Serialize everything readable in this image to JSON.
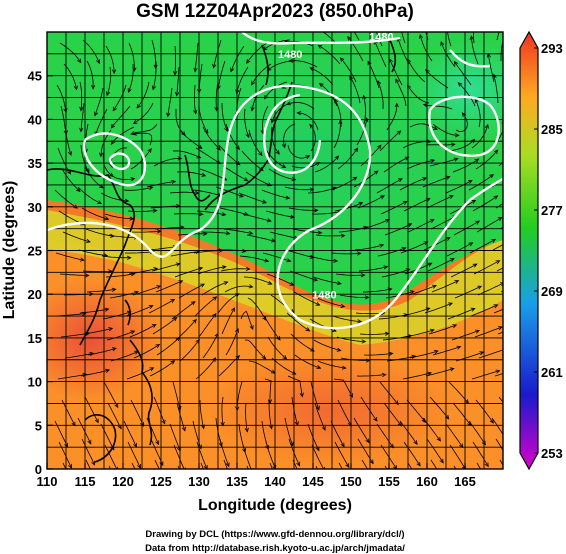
{
  "title": "GSM 12Z04Apr2023 (850.0hPa)",
  "x_axis": {
    "label": "Longitude (degrees)",
    "range": [
      110,
      170
    ],
    "ticks": [
      "110",
      "115",
      "120",
      "125",
      "130",
      "135",
      "140",
      "145",
      "150",
      "155",
      "160",
      "165"
    ],
    "tick_values": [
      110,
      115,
      120,
      125,
      130,
      135,
      140,
      145,
      150,
      155,
      160,
      165
    ]
  },
  "y_axis": {
    "label": "Latitude (degrees)",
    "range": [
      0,
      50
    ],
    "ticks": [
      "0",
      "5",
      "10",
      "15",
      "20",
      "25",
      "30",
      "35",
      "40",
      "45"
    ],
    "tick_values": [
      0,
      5,
      10,
      15,
      20,
      25,
      30,
      35,
      40,
      45
    ]
  },
  "colorbar": {
    "range": [
      253,
      293
    ],
    "ticks": [
      "253",
      "261",
      "269",
      "277",
      "285",
      "293"
    ],
    "tick_values": [
      253,
      261,
      269,
      277,
      285,
      293
    ],
    "colors": [
      "#dd00cc",
      "#1a1acc",
      "#1a9fe8",
      "#22cc22",
      "#aadd22",
      "#ffaa22",
      "#ee3322"
    ]
  },
  "contours": [
    {
      "label": "1480",
      "lon": 142,
      "lat": 47
    },
    {
      "label": "1480",
      "lon": 154,
      "lat": 49
    },
    {
      "label": "1480",
      "lon": 146.5,
      "lat": 19.5
    }
  ],
  "credits": {
    "line1": "Drawing by DCL (https://www.gfd-dennou.org/library/dcl/)",
    "line2": "Data from http://database.rish.kyoto-u.ac.jp/arch/jmadata/"
  }
}
